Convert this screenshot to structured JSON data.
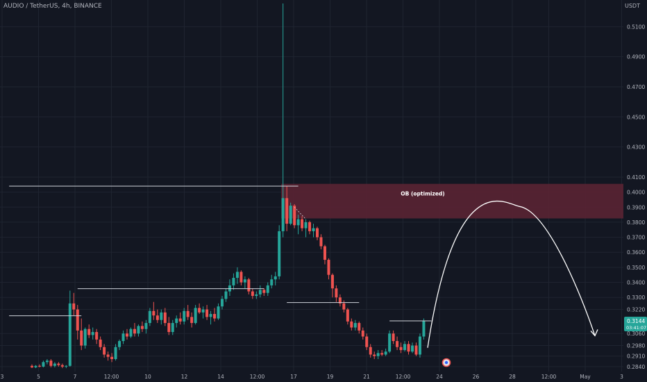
{
  "symbol_title": "AUDIO / TetherUS, 4h, BINANCE",
  "currency_label": "USDT",
  "colors": {
    "background": "#131722",
    "grid": "#1f2430",
    "axis_text": "#b2b5be",
    "bull": "#26a69a",
    "bear": "#ef5350",
    "zone_fill": "#5a2333",
    "line": "#d1d4dc",
    "price_badge": "#26a69a"
  },
  "price_axis": {
    "ticks": [
      "0.5100",
      "0.4900",
      "0.4700",
      "0.4500",
      "0.4300",
      "0.4100",
      "0.4000",
      "0.3900",
      "0.3800",
      "0.3700",
      "0.3600",
      "0.3500",
      "0.3400",
      "0.3300",
      "0.3220",
      "0.3060",
      "0.2980",
      "0.2910",
      "0.2840"
    ]
  },
  "time_axis": {
    "ticks": [
      "3",
      "5",
      "7",
      "12:00",
      "10",
      "12",
      "14",
      "12:00",
      "17",
      "19",
      "21",
      "12:00",
      "24",
      "26",
      "28",
      "12:00",
      "May",
      "3",
      "5"
    ]
  },
  "last_price": {
    "value": "0.3144",
    "countdown": "03:41:07"
  },
  "ob_zone": {
    "label": "OB (optimized)",
    "top": 0.4055,
    "bottom": 0.3825
  },
  "levels": [
    {
      "price": 0.404,
      "from_bar": -6,
      "to_bar": 70
    },
    {
      "price": 0.3358,
      "from_bar": 12,
      "to_bar": 61
    },
    {
      "price": 0.3178,
      "from_bar": -6,
      "to_bar": 13
    },
    {
      "price": 0.3266,
      "from_bar": 67,
      "to_bar": 86
    },
    {
      "price": 0.3144,
      "from_bar": 94,
      "to_bar": 105
    }
  ],
  "projection_curve": {
    "start_price": 0.2965,
    "peak_price": 0.3905,
    "end_price": 0.3045
  },
  "chart_data": {
    "type": "candlestick",
    "title": "AUDIO / TetherUS, 4h, BINANCE",
    "timeframe": "4h",
    "ylim": [
      0.2807,
      0.5254
    ],
    "candles": [
      [
        0.2845,
        0.2855,
        0.283,
        0.2835
      ],
      [
        0.2835,
        0.285,
        0.283,
        0.2845
      ],
      [
        0.2845,
        0.2855,
        0.2835,
        0.284
      ],
      [
        0.284,
        0.288,
        0.2835,
        0.287
      ],
      [
        0.287,
        0.289,
        0.2855,
        0.288
      ],
      [
        0.288,
        0.289,
        0.2835,
        0.2845
      ],
      [
        0.2845,
        0.287,
        0.2835,
        0.286
      ],
      [
        0.286,
        0.287,
        0.284,
        0.285
      ],
      [
        0.285,
        0.286,
        0.283,
        0.284
      ],
      [
        0.284,
        0.285,
        0.283,
        0.2845
      ],
      [
        0.2845,
        0.3345,
        0.284,
        0.326
      ],
      [
        0.326,
        0.333,
        0.318,
        0.322
      ],
      [
        0.322,
        0.325,
        0.302,
        0.308
      ],
      [
        0.308,
        0.316,
        0.295,
        0.298
      ],
      [
        0.298,
        0.31,
        0.296,
        0.309
      ],
      [
        0.309,
        0.312,
        0.303,
        0.305
      ],
      [
        0.305,
        0.31,
        0.302,
        0.307
      ],
      [
        0.307,
        0.309,
        0.299,
        0.302
      ],
      [
        0.302,
        0.304,
        0.295,
        0.297
      ],
      [
        0.297,
        0.299,
        0.29,
        0.292
      ],
      [
        0.292,
        0.294,
        0.288,
        0.2905
      ],
      [
        0.2905,
        0.293,
        0.287,
        0.289
      ],
      [
        0.289,
        0.299,
        0.288,
        0.297
      ],
      [
        0.297,
        0.302,
        0.295,
        0.301
      ],
      [
        0.301,
        0.308,
        0.299,
        0.306
      ],
      [
        0.306,
        0.309,
        0.302,
        0.304
      ],
      [
        0.304,
        0.31,
        0.303,
        0.309
      ],
      [
        0.309,
        0.313,
        0.304,
        0.306
      ],
      [
        0.306,
        0.312,
        0.304,
        0.311
      ],
      [
        0.311,
        0.314,
        0.307,
        0.309
      ],
      [
        0.309,
        0.315,
        0.306,
        0.313
      ],
      [
        0.313,
        0.323,
        0.311,
        0.321
      ],
      [
        0.321,
        0.327,
        0.315,
        0.318
      ],
      [
        0.318,
        0.322,
        0.313,
        0.315
      ],
      [
        0.315,
        0.322,
        0.312,
        0.32
      ],
      [
        0.32,
        0.323,
        0.311,
        0.313
      ],
      [
        0.313,
        0.317,
        0.305,
        0.307
      ],
      [
        0.307,
        0.315,
        0.305,
        0.313
      ],
      [
        0.313,
        0.318,
        0.31,
        0.316
      ],
      [
        0.316,
        0.32,
        0.312,
        0.314
      ],
      [
        0.314,
        0.323,
        0.312,
        0.321
      ],
      [
        0.321,
        0.325,
        0.315,
        0.317
      ],
      [
        0.317,
        0.32,
        0.31,
        0.313
      ],
      [
        0.313,
        0.325,
        0.312,
        0.323
      ],
      [
        0.323,
        0.326,
        0.319,
        0.32
      ],
      [
        0.32,
        0.324,
        0.316,
        0.322
      ],
      [
        0.322,
        0.325,
        0.315,
        0.317
      ],
      [
        0.317,
        0.321,
        0.312,
        0.319
      ],
      [
        0.319,
        0.323,
        0.314,
        0.316
      ],
      [
        0.316,
        0.326,
        0.315,
        0.324
      ],
      [
        0.324,
        0.331,
        0.322,
        0.329
      ],
      [
        0.329,
        0.336,
        0.327,
        0.334
      ],
      [
        0.334,
        0.342,
        0.331,
        0.338
      ],
      [
        0.338,
        0.346,
        0.335,
        0.343
      ],
      [
        0.343,
        0.35,
        0.339,
        0.347
      ],
      [
        0.347,
        0.348,
        0.338,
        0.34
      ],
      [
        0.34,
        0.344,
        0.336,
        0.342
      ],
      [
        0.342,
        0.343,
        0.332,
        0.334
      ],
      [
        0.334,
        0.336,
        0.329,
        0.331
      ],
      [
        0.331,
        0.334,
        0.329,
        0.332
      ],
      [
        0.332,
        0.338,
        0.33,
        0.335
      ],
      [
        0.335,
        0.336,
        0.331,
        0.333
      ],
      [
        0.333,
        0.34,
        0.331,
        0.338
      ],
      [
        0.338,
        0.345,
        0.336,
        0.342
      ],
      [
        0.342,
        0.347,
        0.338,
        0.344
      ],
      [
        0.344,
        0.378,
        0.342,
        0.374
      ],
      [
        0.374,
        0.5254,
        0.37,
        0.396
      ],
      [
        0.396,
        0.404,
        0.374,
        0.379
      ],
      [
        0.379,
        0.393,
        0.378,
        0.391
      ],
      [
        0.391,
        0.392,
        0.376,
        0.378
      ],
      [
        0.378,
        0.385,
        0.372,
        0.382
      ],
      [
        0.382,
        0.384,
        0.374,
        0.376
      ],
      [
        0.376,
        0.382,
        0.37,
        0.38
      ],
      [
        0.38,
        0.381,
        0.372,
        0.374
      ],
      [
        0.374,
        0.379,
        0.37,
        0.376
      ],
      [
        0.376,
        0.377,
        0.368,
        0.37
      ],
      [
        0.37,
        0.372,
        0.362,
        0.364
      ],
      [
        0.364,
        0.365,
        0.352,
        0.355
      ],
      [
        0.355,
        0.356,
        0.342,
        0.345
      ],
      [
        0.345,
        0.346,
        0.33,
        0.336
      ],
      [
        0.336,
        0.338,
        0.327,
        0.33
      ],
      [
        0.33,
        0.332,
        0.324,
        0.326
      ],
      [
        0.326,
        0.328,
        0.32,
        0.322
      ],
      [
        0.322,
        0.323,
        0.312,
        0.314
      ],
      [
        0.314,
        0.316,
        0.308,
        0.31
      ],
      [
        0.31,
        0.315,
        0.308,
        0.313
      ],
      [
        0.313,
        0.314,
        0.306,
        0.308
      ],
      [
        0.308,
        0.31,
        0.302,
        0.304
      ],
      [
        0.304,
        0.306,
        0.295,
        0.297
      ],
      [
        0.297,
        0.299,
        0.29,
        0.292
      ],
      [
        0.292,
        0.294,
        0.289,
        0.291
      ],
      [
        0.291,
        0.295,
        0.289,
        0.293
      ],
      [
        0.293,
        0.295,
        0.291,
        0.292
      ],
      [
        0.292,
        0.296,
        0.291,
        0.294
      ],
      [
        0.294,
        0.308,
        0.293,
        0.306
      ],
      [
        0.306,
        0.308,
        0.299,
        0.301
      ],
      [
        0.301,
        0.304,
        0.295,
        0.297
      ],
      [
        0.297,
        0.3,
        0.293,
        0.295
      ],
      [
        0.295,
        0.301,
        0.294,
        0.299
      ],
      [
        0.299,
        0.301,
        0.292,
        0.294
      ],
      [
        0.294,
        0.3,
        0.293,
        0.298
      ],
      [
        0.298,
        0.3,
        0.291,
        0.292
      ],
      [
        0.292,
        0.306,
        0.29,
        0.304
      ],
      [
        0.304,
        0.316,
        0.302,
        0.3144
      ]
    ],
    "candle_format": [
      "open",
      "high",
      "low",
      "close"
    ]
  }
}
